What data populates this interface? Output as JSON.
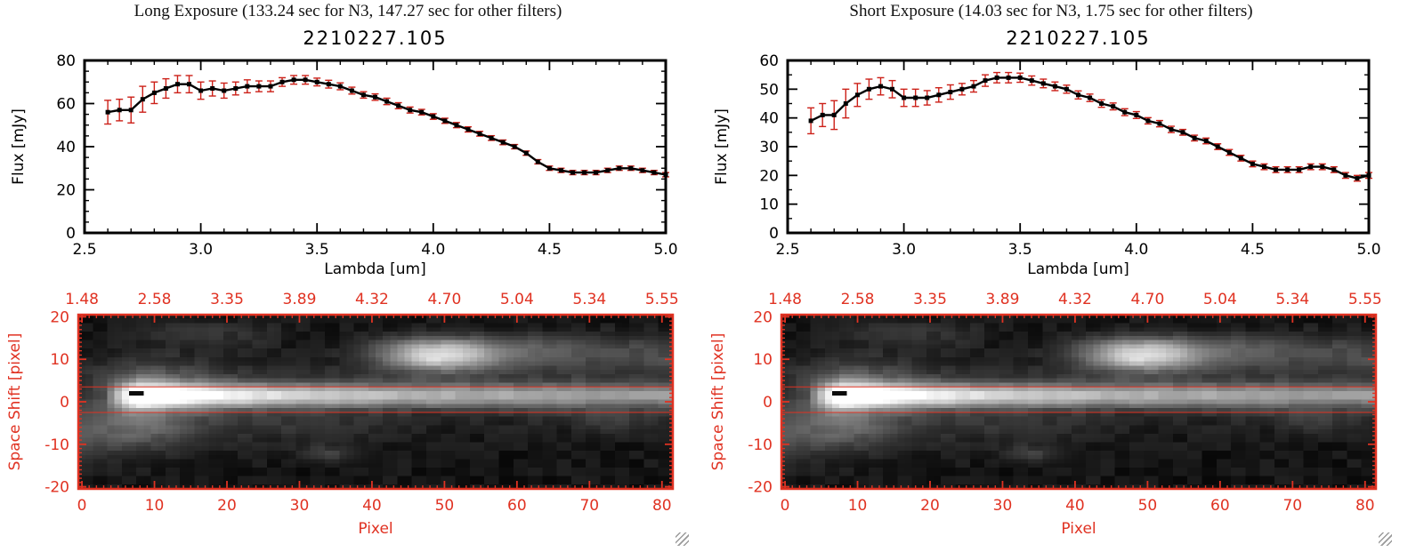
{
  "colors": {
    "background": "#ffffff",
    "spectrum_line": "#000000",
    "marker": "#000000",
    "error_red": "#cc2018",
    "axis_black": "#000000",
    "axis_red": "#e03222",
    "image_background": "#000000"
  },
  "chart_data": [
    {
      "id": "long-spectrum",
      "type": "line",
      "panel": "long",
      "panel_header": "Long Exposure (133.24 sec for N3, 147.27 sec for other filters)",
      "title": "2210227.105",
      "xlabel": "Lambda [um]",
      "ylabel": "Flux [mJy]",
      "xlim": [
        2.5,
        5.0
      ],
      "ylim": [
        0,
        80
      ],
      "xticks": [
        2.5,
        3.0,
        3.5,
        4.0,
        4.5,
        5.0
      ],
      "xtick_labels": [
        "2.5",
        "3.0",
        "3.5",
        "4.0",
        "4.5",
        "5.0"
      ],
      "yticks": [
        0,
        20,
        40,
        60,
        80
      ],
      "ytick_labels": [
        "0",
        "20",
        "40",
        "60",
        "80"
      ],
      "xminor": 0.1,
      "yminor": 5,
      "x": [
        2.6,
        2.65,
        2.7,
        2.75,
        2.8,
        2.85,
        2.9,
        2.95,
        3.0,
        3.05,
        3.1,
        3.15,
        3.2,
        3.25,
        3.3,
        3.35,
        3.4,
        3.45,
        3.5,
        3.55,
        3.6,
        3.65,
        3.7,
        3.75,
        3.8,
        3.85,
        3.9,
        3.95,
        4.0,
        4.05,
        4.1,
        4.15,
        4.2,
        4.25,
        4.3,
        4.35,
        4.4,
        4.45,
        4.5,
        4.55,
        4.6,
        4.65,
        4.7,
        4.75,
        4.8,
        4.85,
        4.9,
        4.95,
        5.0
      ],
      "y": [
        56,
        57,
        57,
        62,
        65,
        67,
        69,
        69,
        66,
        67,
        66,
        67,
        68,
        68,
        68,
        70,
        71,
        71,
        70,
        69,
        68,
        66,
        64,
        63,
        61,
        59,
        57,
        56,
        54,
        52,
        50,
        48,
        46,
        44,
        42,
        40,
        37,
        33,
        30,
        29,
        28,
        28,
        28,
        29,
        30,
        30,
        29,
        28,
        27
      ],
      "yerr": [
        5.5,
        5,
        6,
        6,
        5,
        4.5,
        4,
        4,
        4,
        3.5,
        3.5,
        3,
        3,
        2.5,
        2.5,
        2,
        2,
        2,
        1.8,
        1.8,
        1.6,
        1.6,
        1.5,
        1.5,
        1.5,
        1.4,
        1.4,
        1.3,
        1.3,
        1.2,
        1.2,
        1.2,
        1.1,
        1.1,
        1.1,
        1,
        1,
        1,
        1,
        1,
        1,
        1,
        1,
        1,
        1,
        1,
        1,
        1,
        1
      ]
    },
    {
      "id": "long-image",
      "type": "heatmap",
      "panel": "long",
      "xlabel": "Pixel",
      "ylabel": "Space Shift [pixel]",
      "xticks": [
        0,
        10,
        20,
        30,
        40,
        50,
        60,
        70,
        80
      ],
      "xtick_labels": [
        "0",
        "10",
        "20",
        "30",
        "40",
        "50",
        "60",
        "70",
        "80"
      ],
      "yticks": [
        -20,
        -10,
        0,
        10,
        20
      ],
      "ytick_labels": [
        "-20",
        "-10",
        "0",
        "10",
        "20"
      ],
      "top_ticks": [
        0,
        10,
        20,
        30,
        40,
        50,
        60,
        70,
        80
      ],
      "top_tick_labels": [
        "1.48",
        "2.58",
        "3.35",
        "3.89",
        "4.32",
        "4.70",
        "5.04",
        "5.34",
        "5.55"
      ],
      "extraction_lines_y": [
        3.5,
        -2.5
      ],
      "features": {
        "streak": {
          "x_start": 3,
          "x_peak": 8,
          "sigma": 1.9,
          "y_center": 1.5,
          "end_frac": 0.42,
          "decay": 26
        },
        "entrance_glow": {
          "x": 8,
          "sigma_x": 6.7,
          "sigma_y": 5.5,
          "amp": 0.25
        },
        "fan_amp": 0.18,
        "blob": {
          "x": 49,
          "y": 11,
          "sigma_x": 5.5,
          "sigma_y": 2.6,
          "intensity": 0.8
        },
        "blob_tail_amp": 0.18,
        "patches": [
          {
            "x": 18,
            "y": 16,
            "sx": 7,
            "sy": 2.2,
            "amp": 0.1
          },
          {
            "x": 34,
            "y": -12,
            "sx": 3,
            "sy": 1.6,
            "amp": 0.13
          },
          {
            "x": 7,
            "y": -7,
            "sx": 5,
            "sy": 3,
            "amp": 0.12
          },
          {
            "x": 30,
            "y": -6,
            "sx": 9,
            "sy": 2.5,
            "amp": 0.07
          },
          {
            "x": 73,
            "y": -4,
            "sx": 5,
            "sy": 2,
            "amp": 0.1
          },
          {
            "x": 62,
            "y": 13,
            "sx": 8,
            "sy": 2,
            "amp": 0.08
          }
        ],
        "marker": {
          "x": 7,
          "y": 2
        }
      }
    },
    {
      "id": "short-spectrum",
      "type": "line",
      "panel": "short",
      "panel_header": "Short Exposure (14.03 sec for N3, 1.75 sec for other filters)",
      "title": "2210227.105",
      "xlabel": "Lambda [um]",
      "ylabel": "Flux [mJy]",
      "xlim": [
        2.5,
        5.0
      ],
      "ylim": [
        0,
        60
      ],
      "xticks": [
        2.5,
        3.0,
        3.5,
        4.0,
        4.5,
        5.0
      ],
      "xtick_labels": [
        "2.5",
        "3.0",
        "3.5",
        "4.0",
        "4.5",
        "5.0"
      ],
      "yticks": [
        0,
        10,
        20,
        30,
        40,
        50,
        60
      ],
      "ytick_labels": [
        "0",
        "10",
        "20",
        "30",
        "40",
        "50",
        "60"
      ],
      "xminor": 0.1,
      "yminor": 5,
      "x": [
        2.6,
        2.65,
        2.7,
        2.75,
        2.8,
        2.85,
        2.9,
        2.95,
        3.0,
        3.05,
        3.1,
        3.15,
        3.2,
        3.25,
        3.3,
        3.35,
        3.4,
        3.45,
        3.5,
        3.55,
        3.6,
        3.65,
        3.7,
        3.75,
        3.8,
        3.85,
        3.9,
        3.95,
        4.0,
        4.05,
        4.1,
        4.15,
        4.2,
        4.25,
        4.3,
        4.35,
        4.4,
        4.45,
        4.5,
        4.55,
        4.6,
        4.65,
        4.7,
        4.75,
        4.8,
        4.85,
        4.9,
        4.95,
        5.0
      ],
      "y": [
        39,
        41,
        41,
        45,
        48,
        50,
        51,
        50,
        47,
        47,
        47,
        48,
        49,
        50,
        51,
        53,
        54,
        54,
        54,
        53,
        52,
        51,
        50,
        48,
        47,
        45,
        44,
        42,
        41,
        39,
        38,
        36,
        35,
        33,
        32,
        30,
        28,
        26,
        24,
        23,
        22,
        22,
        22,
        23,
        23,
        22,
        20,
        19,
        20
      ],
      "yerr": [
        4.5,
        4,
        5,
        5,
        4,
        3.5,
        3,
        3,
        3,
        3,
        2.5,
        2.5,
        2.5,
        2,
        2,
        2,
        1.8,
        1.8,
        1.6,
        1.6,
        1.5,
        1.5,
        1.4,
        1.4,
        1.3,
        1.3,
        1.2,
        1.2,
        1.2,
        1.1,
        1.1,
        1.1,
        1,
        1,
        1,
        1,
        1,
        1,
        1,
        1,
        1,
        1,
        1,
        1,
        1,
        1,
        1,
        1,
        1
      ]
    },
    {
      "id": "short-image",
      "type": "heatmap",
      "panel": "short",
      "xlabel": "Pixel",
      "ylabel": "Space Shift [pixel]",
      "xticks": [
        0,
        10,
        20,
        30,
        40,
        50,
        60,
        70,
        80
      ],
      "xtick_labels": [
        "0",
        "10",
        "20",
        "30",
        "40",
        "50",
        "60",
        "70",
        "80"
      ],
      "yticks": [
        -20,
        -10,
        0,
        10,
        20
      ],
      "ytick_labels": [
        "-20",
        "-10",
        "0",
        "10",
        "20"
      ],
      "top_ticks": [
        0,
        10,
        20,
        30,
        40,
        50,
        60,
        70,
        80
      ],
      "top_tick_labels": [
        "1.48",
        "2.58",
        "3.35",
        "3.89",
        "4.32",
        "4.70",
        "5.04",
        "5.34",
        "5.55"
      ],
      "extraction_lines_y": [
        3.5,
        -2.5
      ],
      "features": {
        "streak": {
          "x_start": 3,
          "x_peak": 8,
          "sigma": 1.9,
          "y_center": 1.5,
          "end_frac": 0.42,
          "decay": 26
        },
        "entrance_glow": {
          "x": 8,
          "sigma_x": 6.7,
          "sigma_y": 5.5,
          "amp": 0.25
        },
        "fan_amp": 0.18,
        "blob": {
          "x": 49,
          "y": 11,
          "sigma_x": 5.5,
          "sigma_y": 2.6,
          "intensity": 0.8
        },
        "blob_tail_amp": 0.18,
        "patches": [
          {
            "x": 18,
            "y": 16,
            "sx": 7,
            "sy": 2.2,
            "amp": 0.1
          },
          {
            "x": 34,
            "y": -12,
            "sx": 3,
            "sy": 1.6,
            "amp": 0.13
          },
          {
            "x": 7,
            "y": -7,
            "sx": 5,
            "sy": 3,
            "amp": 0.12
          },
          {
            "x": 30,
            "y": -6,
            "sx": 9,
            "sy": 2.5,
            "amp": 0.07
          },
          {
            "x": 73,
            "y": -4,
            "sx": 5,
            "sy": 2,
            "amp": 0.1
          },
          {
            "x": 62,
            "y": 13,
            "sx": 8,
            "sy": 2,
            "amp": 0.08
          }
        ],
        "marker": {
          "x": 7,
          "y": 2
        }
      }
    }
  ]
}
